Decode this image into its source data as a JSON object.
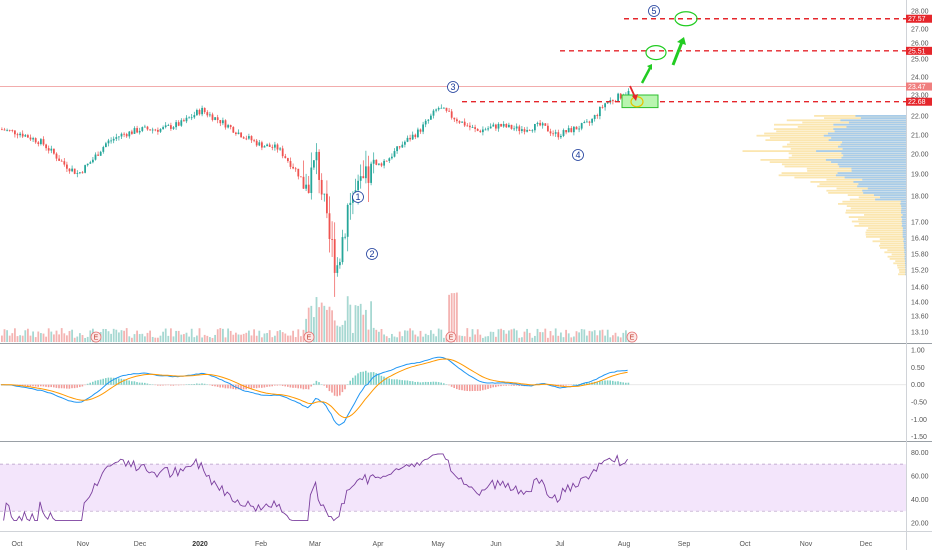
{
  "chart_data": [
    {
      "type": "candlestick",
      "panel": "price",
      "x_labels": [
        "Oct",
        "Nov",
        "Dec",
        "2020",
        "Feb",
        "Mar",
        "Apr",
        "May",
        "Jun",
        "Jul",
        "Aug",
        "Sep",
        "Oct",
        "Nov",
        "Dec"
      ],
      "y_ticks": [
        "28.00",
        "27.00",
        "26.00",
        "25.00",
        "24.00",
        "23.00",
        "22.00",
        "21.00",
        "20.00",
        "19.00",
        "18.00",
        "17.00",
        "16.40",
        "15.80",
        "15.20",
        "14.60",
        "14.00",
        "13.60",
        "13.10"
      ],
      "ylim": [
        12.9,
        28.3
      ],
      "close_path": [
        [
          "Oct",
          21.3
        ],
        [
          "Oct",
          21.1
        ],
        [
          "Oct",
          20.6
        ],
        [
          "Nov",
          19.5
        ],
        [
          "Nov",
          19.0
        ],
        [
          "Nov",
          19.7
        ],
        [
          "Nov",
          20.6
        ],
        [
          "Dec",
          21.0
        ],
        [
          "Dec",
          21.3
        ],
        [
          "Dec",
          21.3
        ],
        [
          "2020",
          21.6
        ],
        [
          "2020",
          22.3
        ],
        [
          "2020",
          21.7
        ],
        [
          "Feb",
          21.0
        ],
        [
          "Feb",
          20.5
        ],
        [
          "Feb",
          20.3
        ],
        [
          "Mar",
          19.2
        ],
        [
          "Mar",
          18.4
        ],
        [
          "Mar",
          19.8
        ],
        [
          "Mar",
          16.5
        ],
        [
          "Mar",
          15.4
        ],
        [
          "Mar",
          17.8
        ],
        [
          "Apr",
          18.2
        ],
        [
          "Apr",
          19.3
        ],
        [
          "Apr",
          19.8
        ],
        [
          "Apr",
          20.6
        ],
        [
          "May",
          21.2
        ],
        [
          "May",
          22.4
        ],
        [
          "May",
          21.8
        ],
        [
          "Jun",
          21.2
        ],
        [
          "Jun",
          21.5
        ],
        [
          "Jun",
          21.3
        ],
        [
          "Jul",
          21.5
        ],
        [
          "Jul",
          21.0
        ],
        [
          "Jul",
          21.3
        ],
        [
          "Jul",
          21.6
        ],
        [
          "Aug",
          22.6
        ],
        [
          "Aug",
          23.3
        ]
      ],
      "price_tags": [
        {
          "value": "27.57",
          "color": "#e5262b"
        },
        {
          "value": "25.51",
          "color": "#e5262b"
        },
        {
          "value": "23.47",
          "color": "#f07f7f"
        },
        {
          "value": "22.68",
          "color": "#e5262b"
        }
      ],
      "wave_labels": [
        "5",
        "3",
        "1",
        "2",
        "4"
      ],
      "earnings_marker": "E",
      "volume_profile": "horizontal histogram on right, blue/yellow"
    },
    {
      "type": "macd",
      "panel": "macd",
      "y_ticks": [
        "1.00",
        "0.50",
        "0.00",
        "-0.50",
        "-1.00",
        "-1.50"
      ],
      "ylim": [
        -1.6,
        1.15
      ]
    },
    {
      "type": "rsi",
      "panel": "rsi",
      "y_ticks": [
        "80.00",
        "60.00",
        "40.00",
        "20.00"
      ],
      "ylim": [
        14,
        88
      ],
      "band": [
        30,
        70
      ]
    }
  ],
  "colors": {
    "up": "#26a69a",
    "down": "#ef5350",
    "macd_line": "#2196f3",
    "signal_line": "#ff9800",
    "rsi_line": "#7b3f9e",
    "rsi_band": "#f3e5fb",
    "dashed_red": "#e5262b",
    "green_arrow": "#22cc22"
  }
}
